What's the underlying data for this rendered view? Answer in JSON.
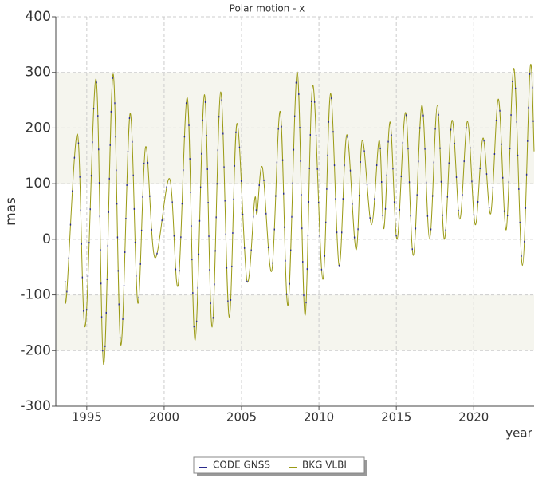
{
  "chart_data": {
    "type": "line",
    "title": "Polar motion - x",
    "ylabel": "mas",
    "xlabel": "year",
    "x": [
      1993.6,
      1993.7,
      1994.4,
      1994.9,
      1995.6,
      1996.1,
      1996.7,
      1997.2,
      1997.8,
      1998.3,
      1998.8,
      1999.4,
      2000.35,
      2000.9,
      2001.5,
      2002.0,
      2002.6,
      2003.1,
      2003.65,
      2004.2,
      2004.7,
      2005.35,
      2005.85,
      2006.0,
      2006.35,
      2006.95,
      2007.5,
      2008.0,
      2008.6,
      2009.1,
      2009.6,
      2010.25,
      2010.75,
      2011.3,
      2011.8,
      2012.4,
      2012.8,
      2013.4,
      2013.9,
      2014.2,
      2014.6,
      2015.05,
      2015.6,
      2016.1,
      2016.65,
      2017.15,
      2017.65,
      2018.1,
      2018.6,
      2019.1,
      2019.6,
      2020.1,
      2020.6,
      2021.1,
      2021.6,
      2022.1,
      2022.6,
      2023.15,
      2023.65,
      2023.9
    ],
    "series": [
      {
        "name": "CODE GNSS",
        "color": "#2a2a8c",
        "values": [
          -75,
          -100,
          189,
          -157,
          288,
          -226,
          297,
          -190,
          226,
          -115,
          166,
          -33,
          109,
          -83,
          254,
          -182,
          260,
          -158,
          265,
          -140,
          208,
          -75,
          72,
          46,
          129,
          -57,
          230,
          -119,
          301,
          -137,
          277,
          -72,
          262,
          -47,
          188,
          -19,
          178,
          26,
          178,
          19,
          211,
          0,
          228,
          -29,
          241,
          0,
          241,
          0,
          214,
          36,
          212,
          26,
          182,
          46,
          252,
          17,
          307,
          -47,
          310,
          158
        ]
      },
      {
        "name": "BKG VLBI",
        "color": "#9a9a14",
        "values": [
          -75,
          -100,
          189,
          -157,
          288,
          -226,
          297,
          -190,
          226,
          -115,
          166,
          -33,
          109,
          -83,
          254,
          -182,
          260,
          -158,
          265,
          -140,
          208,
          -75,
          72,
          46,
          129,
          -57,
          230,
          -119,
          301,
          -137,
          277,
          -72,
          262,
          -47,
          188,
          -19,
          178,
          26,
          178,
          19,
          211,
          0,
          228,
          -29,
          241,
          0,
          241,
          0,
          214,
          36,
          212,
          26,
          182,
          46,
          252,
          17,
          307,
          -47,
          310,
          158
        ]
      }
    ],
    "xlim": [
      1993,
      2023.9
    ],
    "xticks": [
      1995,
      2000,
      2005,
      2010,
      2015,
      2020
    ],
    "ylim": [
      -300,
      400
    ],
    "yticks": [
      -300,
      -200,
      -100,
      0,
      100,
      200,
      300,
      400
    ],
    "grid": true,
    "legend": "bottom"
  }
}
